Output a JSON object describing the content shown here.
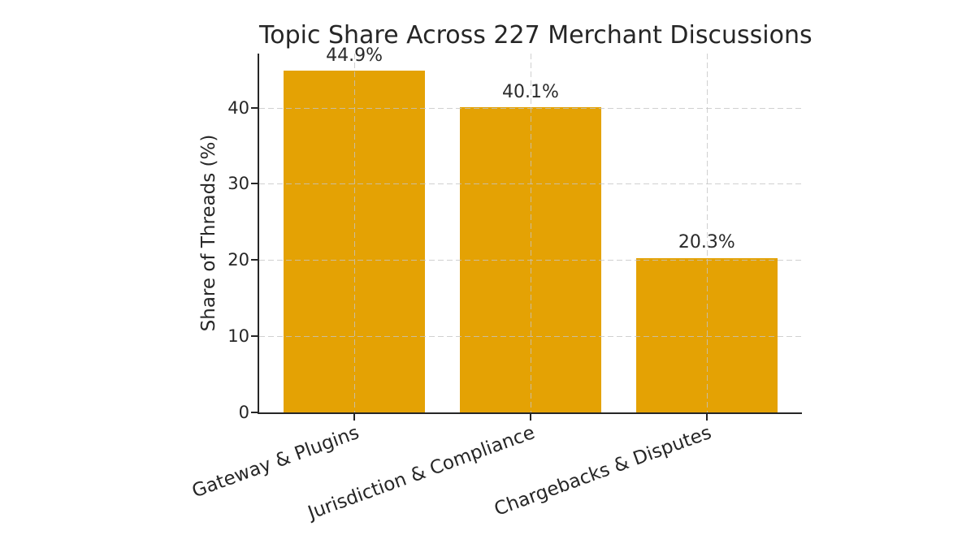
{
  "chart_data": {
    "type": "bar",
    "title": "Topic Share Across 227 Merchant Discussions",
    "xlabel": "",
    "ylabel": "Share of Threads (%)",
    "categories": [
      "Gateway & Plugins",
      "Jurisdiction & Compliance",
      "Chargebacks & Disputes"
    ],
    "values": [
      44.9,
      40.1,
      20.3
    ],
    "value_labels": [
      "44.9%",
      "40.1%",
      "20.3%"
    ],
    "yticks": [
      0,
      10,
      20,
      30,
      40
    ],
    "ytick_labels": [
      "0",
      "10",
      "20",
      "30",
      "40"
    ],
    "ylim": [
      0,
      47.1
    ],
    "grid": true,
    "grid_style": "dashed",
    "legend_position": "none",
    "bar_width_fraction": 0.8,
    "x_label_rotation_deg": 20,
    "colors": {
      "bar": "#E4A204",
      "spine": "#262626",
      "grid": "#c4c4c4",
      "text": "#262626",
      "background": "#ffffff"
    }
  }
}
